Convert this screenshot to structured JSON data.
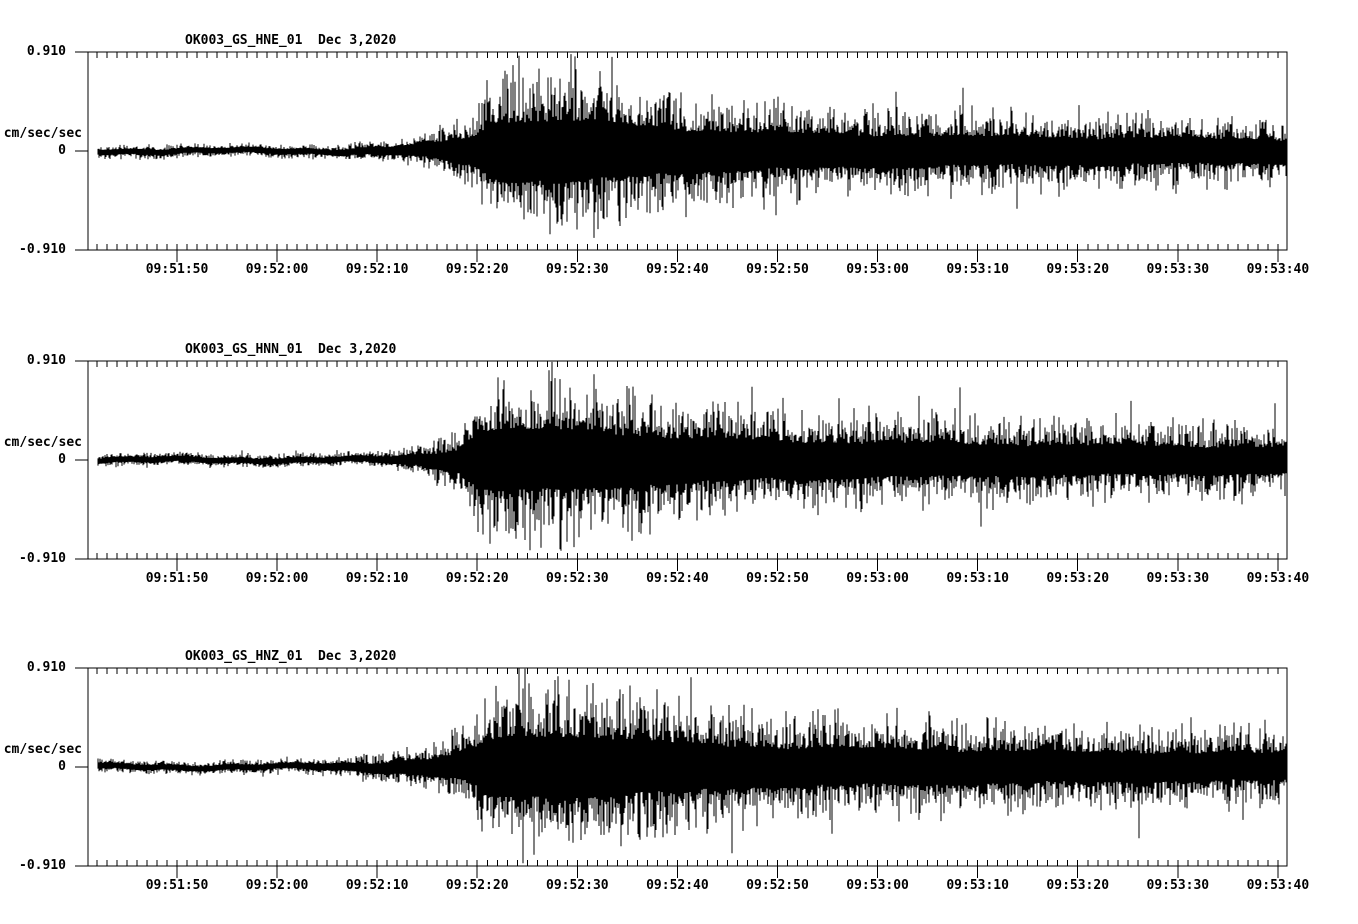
{
  "page": {
    "background_color": "#ffffff",
    "trace_color": "#000000",
    "axis_color": "#000000"
  },
  "chart_data": [
    {
      "type": "line",
      "kind": "seismogram",
      "station_channel": "OK003_GS_HNE_01",
      "date": "Dec 3,2020",
      "title_line": "OK003_GS_HNE_01  Dec 3,2020",
      "ylabel": "cm/sec/sec",
      "ylim": [
        -0.91,
        0.91
      ],
      "ytick_values": [
        0.91,
        0,
        -0.91
      ],
      "ytick_labels": [
        "0.910",
        "0",
        "-0.910"
      ],
      "xtick_labels": [
        "09:51:50",
        "09:52:00",
        "09:52:10",
        "09:52:20",
        "09:52:30",
        "09:52:40",
        "09:52:50",
        "09:53:00",
        "09:53:10",
        "09:53:20",
        "09:53:30",
        "09:53:40"
      ],
      "x_window_start": "09:51:41",
      "x_window_end": "09:53:41",
      "xtick_interval_sec": 10,
      "minor_tick_interval_sec": 1,
      "amplitude_envelope": [
        [
          1.0,
          0.075
        ],
        [
          24,
          0.075
        ],
        [
          28,
          0.095
        ],
        [
          31,
          0.13
        ],
        [
          33,
          0.18
        ],
        [
          35,
          0.25
        ],
        [
          37,
          0.32
        ],
        [
          39,
          0.48
        ],
        [
          40,
          0.72
        ],
        [
          41,
          0.88
        ],
        [
          43,
          0.93
        ],
        [
          46,
          0.89
        ],
        [
          48,
          0.93
        ],
        [
          51,
          0.86
        ],
        [
          54,
          0.79
        ],
        [
          57,
          0.71
        ],
        [
          60,
          0.65
        ],
        [
          64,
          0.6
        ],
        [
          68,
          0.56
        ],
        [
          73,
          0.52
        ],
        [
          80,
          0.48
        ],
        [
          90,
          0.44
        ],
        [
          100,
          0.41
        ],
        [
          110,
          0.385
        ],
        [
          119.8,
          0.36
        ]
      ]
    },
    {
      "type": "line",
      "kind": "seismogram",
      "station_channel": "OK003_GS_HNN_01",
      "date": "Dec 3,2020",
      "title_line": "OK003_GS_HNN_01  Dec 3,2020",
      "ylabel": "cm/sec/sec",
      "ylim": [
        -0.91,
        0.91
      ],
      "ytick_values": [
        0.91,
        0,
        -0.91
      ],
      "ytick_labels": [
        "0.910",
        "0",
        "-0.910"
      ],
      "xtick_labels": [
        "09:51:50",
        "09:52:00",
        "09:52:10",
        "09:52:20",
        "09:52:30",
        "09:52:40",
        "09:52:50",
        "09:53:00",
        "09:53:10",
        "09:53:20",
        "09:53:30",
        "09:53:40"
      ],
      "x_window_start": "09:51:41",
      "x_window_end": "09:53:41",
      "xtick_interval_sec": 10,
      "minor_tick_interval_sec": 1,
      "amplitude_envelope": [
        [
          1.0,
          0.075
        ],
        [
          26,
          0.075
        ],
        [
          30,
          0.1
        ],
        [
          33,
          0.16
        ],
        [
          35,
          0.23
        ],
        [
          37,
          0.34
        ],
        [
          38,
          0.52
        ],
        [
          39,
          0.78
        ],
        [
          40,
          0.9
        ],
        [
          42,
          0.94
        ],
        [
          45,
          0.89
        ],
        [
          48,
          0.91
        ],
        [
          52,
          0.83
        ],
        [
          56,
          0.74
        ],
        [
          60,
          0.67
        ],
        [
          65,
          0.61
        ],
        [
          70,
          0.57
        ],
        [
          78,
          0.53
        ],
        [
          88,
          0.49
        ],
        [
          98,
          0.46
        ],
        [
          108,
          0.43
        ],
        [
          119.8,
          0.41
        ]
      ]
    },
    {
      "type": "line",
      "kind": "seismogram",
      "station_channel": "OK003_GS_HNZ_01",
      "date": "Dec 3,2020",
      "title_line": "OK003_GS_HNZ_01  Dec 3,2020",
      "ylabel": "cm/sec/sec",
      "ylim": [
        -0.91,
        0.91
      ],
      "ytick_values": [
        0.91,
        0,
        -0.91
      ],
      "ytick_labels": [
        "0.910",
        "0",
        "-0.910"
      ],
      "xtick_labels": [
        "09:51:50",
        "09:52:00",
        "09:52:10",
        "09:52:20",
        "09:52:30",
        "09:52:40",
        "09:52:50",
        "09:53:00",
        "09:53:10",
        "09:53:20",
        "09:53:30",
        "09:53:40"
      ],
      "x_window_start": "09:51:41",
      "x_window_end": "09:53:41",
      "xtick_interval_sec": 10,
      "minor_tick_interval_sec": 1,
      "amplitude_envelope": [
        [
          1.0,
          0.075
        ],
        [
          20,
          0.075
        ],
        [
          24,
          0.095
        ],
        [
          27,
          0.125
        ],
        [
          30,
          0.165
        ],
        [
          33,
          0.225
        ],
        [
          35,
          0.29
        ],
        [
          37,
          0.37
        ],
        [
          39,
          0.56
        ],
        [
          40,
          0.8
        ],
        [
          42,
          0.93
        ],
        [
          45,
          0.9
        ],
        [
          48,
          0.94
        ],
        [
          52,
          0.87
        ],
        [
          56,
          0.79
        ],
        [
          60,
          0.71
        ],
        [
          65,
          0.64
        ],
        [
          70,
          0.59
        ],
        [
          78,
          0.55
        ],
        [
          88,
          0.51
        ],
        [
          98,
          0.47
        ],
        [
          108,
          0.44
        ],
        [
          119.8,
          0.42
        ]
      ]
    }
  ]
}
